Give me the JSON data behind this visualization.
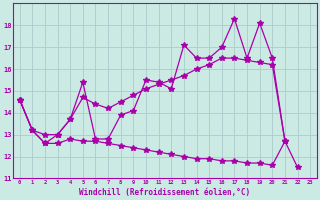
{
  "line1_x": [
    0,
    1,
    2,
    3,
    4,
    5,
    6,
    7,
    8,
    9,
    10,
    11,
    12,
    13,
    14,
    15,
    16,
    17,
    18,
    19,
    20,
    21
  ],
  "line1_y": [
    14.6,
    13.2,
    12.6,
    13.0,
    13.7,
    15.4,
    12.8,
    12.8,
    13.9,
    14.1,
    15.5,
    15.4,
    15.1,
    17.1,
    16.5,
    16.5,
    17.0,
    18.3,
    16.5,
    18.1,
    16.5,
    12.7
  ],
  "line2_x": [
    0,
    1,
    2,
    3,
    4,
    5,
    6,
    7,
    8,
    9,
    10,
    11,
    12,
    13,
    14,
    15,
    16,
    17,
    18,
    19,
    20,
    21
  ],
  "line2_y": [
    14.6,
    13.2,
    13.0,
    13.0,
    13.7,
    14.7,
    14.4,
    14.2,
    14.5,
    14.8,
    15.1,
    15.3,
    15.5,
    15.7,
    16.0,
    16.2,
    16.5,
    16.5,
    16.4,
    16.3,
    16.2,
    12.7
  ],
  "line3_x": [
    0,
    1,
    2,
    3,
    4,
    5,
    6,
    7,
    8,
    9,
    10,
    11,
    12,
    13,
    14,
    15,
    16,
    17,
    18,
    19,
    20,
    21,
    22
  ],
  "line3_y": [
    14.6,
    13.2,
    12.6,
    12.6,
    12.8,
    12.7,
    12.7,
    12.6,
    12.5,
    12.4,
    12.3,
    12.2,
    12.1,
    12.0,
    11.9,
    11.9,
    11.8,
    11.8,
    11.7,
    11.7,
    11.6,
    12.7,
    11.5
  ],
  "line_color": "#aa00aa",
  "bg_color": "#cceae4",
  "grid_color": "#aacccc",
  "xlabel": "Windchill (Refroidissement éolien,°C)",
  "xlim": [
    -0.5,
    23.5
  ],
  "ylim": [
    11,
    19
  ],
  "yticks": [
    11,
    12,
    13,
    14,
    15,
    16,
    17,
    18
  ],
  "xticks": [
    0,
    1,
    2,
    3,
    4,
    5,
    6,
    7,
    8,
    9,
    10,
    11,
    12,
    13,
    14,
    15,
    16,
    17,
    18,
    19,
    20,
    21,
    22,
    23
  ]
}
